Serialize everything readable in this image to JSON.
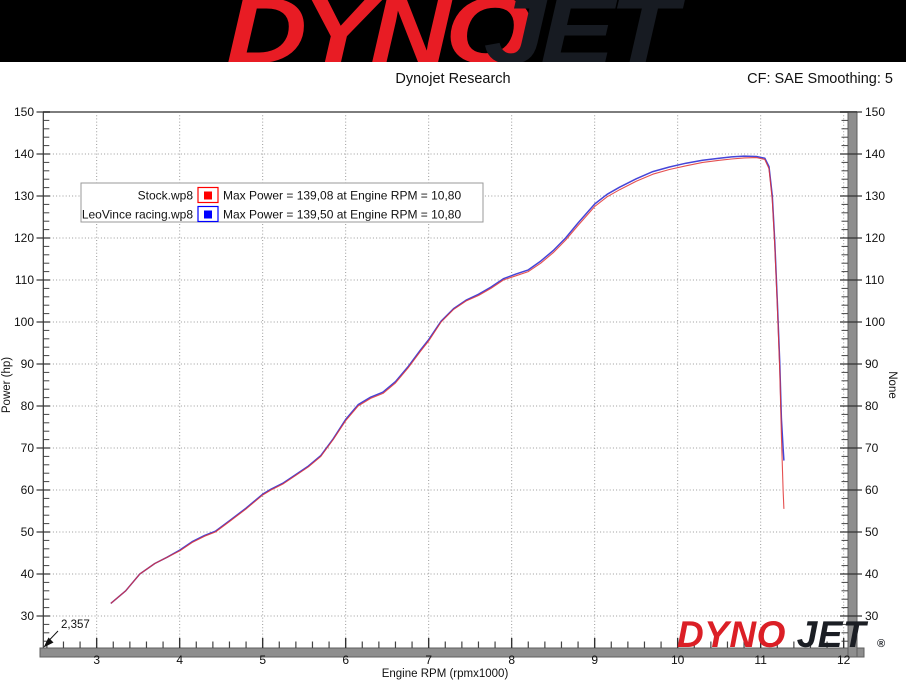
{
  "banner": {
    "dyno": "DYNO",
    "jet": "JET"
  },
  "header": {
    "title": "Dynojet Research",
    "cf_label": "CF: SAE Smoothing: 5"
  },
  "watermark": {
    "dyno": "DYNO",
    "jet": "JET",
    "reg": "®"
  },
  "chart_data": {
    "type": "line",
    "title": "Dynojet Research",
    "xlabel": "Engine RPM (rpmx1000)",
    "ylabel": "Power (hp)",
    "y2label": "None",
    "xlim": [
      2.357,
      12.05
    ],
    "ylim": [
      22.4,
      150
    ],
    "x_ticks": [
      3,
      4,
      5,
      6,
      7,
      8,
      9,
      10,
      11,
      12
    ],
    "y_ticks": [
      30,
      40,
      50,
      60,
      70,
      80,
      90,
      100,
      110,
      120,
      130,
      140,
      150
    ],
    "x_minor_step": 0.2,
    "y_minor_step": 2,
    "grid": true,
    "legend_position": "upper-left",
    "origin_annotation": "2,357",
    "legend": [
      {
        "name": "Stock.wp8",
        "color": "#ff0000",
        "label": "Max Power = 139,08 at Engine RPM = 10,80",
        "max_power": 139.08,
        "max_power_rpm": 10.8
      },
      {
        "name": "LeoVince racing.wp8",
        "color": "#0000ff",
        "label": "Max Power = 139,50 at Engine RPM = 10,80",
        "max_power": 139.5,
        "max_power_rpm": 10.8
      }
    ],
    "series": [
      {
        "name": "Stock.wp8",
        "color": "#e03131",
        "points": [
          [
            3.17,
            33
          ],
          [
            3.35,
            36
          ],
          [
            3.52,
            40
          ],
          [
            3.7,
            42.5
          ],
          [
            3.85,
            44
          ],
          [
            4.0,
            45.5
          ],
          [
            4.15,
            47.5
          ],
          [
            4.3,
            49
          ],
          [
            4.43,
            50
          ],
          [
            4.6,
            52.5
          ],
          [
            4.8,
            55.5
          ],
          [
            5.0,
            58.8
          ],
          [
            5.1,
            60
          ],
          [
            5.25,
            61.5
          ],
          [
            5.4,
            63.5
          ],
          [
            5.55,
            65.5
          ],
          [
            5.7,
            68
          ],
          [
            5.85,
            72
          ],
          [
            6.0,
            76.5
          ],
          [
            6.15,
            80
          ],
          [
            6.3,
            81.8
          ],
          [
            6.45,
            83
          ],
          [
            6.6,
            85.5
          ],
          [
            6.75,
            89
          ],
          [
            6.9,
            93
          ],
          [
            7.0,
            95.5
          ],
          [
            7.15,
            100
          ],
          [
            7.3,
            103
          ],
          [
            7.45,
            105
          ],
          [
            7.6,
            106.3
          ],
          [
            7.75,
            108
          ],
          [
            7.9,
            110
          ],
          [
            8.05,
            111
          ],
          [
            8.2,
            112
          ],
          [
            8.35,
            114
          ],
          [
            8.5,
            116.5
          ],
          [
            8.65,
            119.5
          ],
          [
            8.8,
            123
          ],
          [
            9.0,
            127.5
          ],
          [
            9.15,
            129.8
          ],
          [
            9.3,
            131.5
          ],
          [
            9.5,
            133.5
          ],
          [
            9.7,
            135.2
          ],
          [
            9.9,
            136.3
          ],
          [
            10.1,
            137.2
          ],
          [
            10.3,
            138
          ],
          [
            10.5,
            138.5
          ],
          [
            10.65,
            138.8
          ],
          [
            10.8,
            139.08
          ],
          [
            10.95,
            139.15
          ],
          [
            11.05,
            138.7
          ],
          [
            11.1,
            136.5
          ],
          [
            11.14,
            129
          ],
          [
            11.17,
            118
          ],
          [
            11.2,
            104
          ],
          [
            11.23,
            88
          ],
          [
            11.25,
            73
          ],
          [
            11.27,
            60
          ],
          [
            11.28,
            55.5
          ]
        ]
      },
      {
        "name": "LeoVince racing.wp8",
        "color": "#3b3bd6",
        "points": [
          [
            3.17,
            33
          ],
          [
            3.35,
            36
          ],
          [
            3.52,
            40
          ],
          [
            3.7,
            42.5
          ],
          [
            3.85,
            44
          ],
          [
            4.0,
            45.7
          ],
          [
            4.15,
            47.7
          ],
          [
            4.3,
            49.2
          ],
          [
            4.43,
            50.2
          ],
          [
            4.6,
            52.7
          ],
          [
            4.8,
            55.7
          ],
          [
            5.0,
            59
          ],
          [
            5.1,
            60.2
          ],
          [
            5.25,
            61.7
          ],
          [
            5.4,
            63.7
          ],
          [
            5.55,
            65.7
          ],
          [
            5.7,
            68.2
          ],
          [
            5.85,
            72.2
          ],
          [
            6.0,
            76.8
          ],
          [
            6.15,
            80.3
          ],
          [
            6.3,
            82.1
          ],
          [
            6.45,
            83.3
          ],
          [
            6.6,
            85.8
          ],
          [
            6.75,
            89.3
          ],
          [
            6.9,
            93.3
          ],
          [
            7.0,
            95.8
          ],
          [
            7.15,
            100.2
          ],
          [
            7.3,
            103.2
          ],
          [
            7.45,
            105.2
          ],
          [
            7.6,
            106.6
          ],
          [
            7.75,
            108.3
          ],
          [
            7.9,
            110.3
          ],
          [
            8.05,
            111.4
          ],
          [
            8.2,
            112.4
          ],
          [
            8.35,
            114.5
          ],
          [
            8.5,
            117
          ],
          [
            8.65,
            120
          ],
          [
            8.8,
            123.6
          ],
          [
            9.0,
            128.1
          ],
          [
            9.15,
            130.4
          ],
          [
            9.3,
            132.1
          ],
          [
            9.5,
            134.1
          ],
          [
            9.7,
            135.8
          ],
          [
            9.9,
            136.9
          ],
          [
            10.1,
            137.8
          ],
          [
            10.3,
            138.5
          ],
          [
            10.5,
            139
          ],
          [
            10.65,
            139.3
          ],
          [
            10.8,
            139.5
          ],
          [
            10.95,
            139.4
          ],
          [
            11.05,
            139
          ],
          [
            11.1,
            137
          ],
          [
            11.14,
            130
          ],
          [
            11.17,
            119
          ],
          [
            11.2,
            105
          ],
          [
            11.23,
            90
          ],
          [
            11.25,
            77
          ],
          [
            11.27,
            70
          ],
          [
            11.28,
            67
          ]
        ]
      }
    ]
  }
}
